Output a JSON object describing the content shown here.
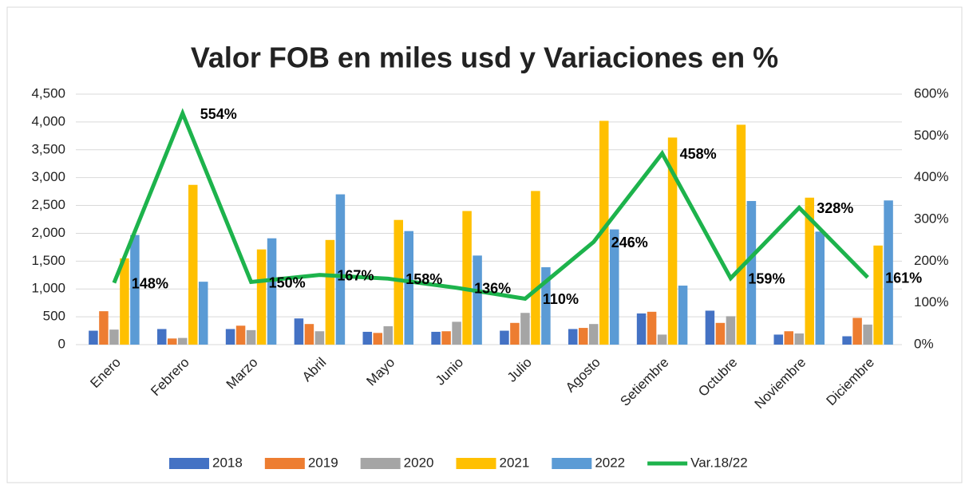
{
  "chart_data": {
    "type": "bar",
    "title": "Valor FOB en miles usd y Variaciones en %",
    "categories": [
      "Enero",
      "Febrero",
      "Marzo",
      "Abril",
      "Mayo",
      "Junio",
      "Julio",
      "Agosto",
      "Setiembre",
      "Octubre",
      "Noviembre",
      "Diciembre"
    ],
    "series": [
      {
        "name": "2018",
        "color": "#4472c4",
        "values": [
          250,
          280,
          280,
          470,
          230,
          230,
          250,
          280,
          560,
          610,
          180,
          150
        ]
      },
      {
        "name": "2019",
        "color": "#ed7d31",
        "values": [
          600,
          110,
          340,
          370,
          210,
          240,
          390,
          300,
          590,
          390,
          240,
          480
        ]
      },
      {
        "name": "2020",
        "color": "#a5a5a5",
        "values": [
          270,
          120,
          260,
          240,
          330,
          410,
          570,
          370,
          180,
          510,
          200,
          360
        ]
      },
      {
        "name": "2021",
        "color": "#ffc000",
        "values": [
          1550,
          2870,
          1710,
          1880,
          2240,
          2400,
          2760,
          4020,
          3720,
          3950,
          2640,
          1780
        ]
      },
      {
        "name": "2022",
        "color": "#5b9bd5",
        "values": [
          1970,
          1130,
          1910,
          2700,
          2040,
          1600,
          1390,
          2070,
          1060,
          2580,
          2030,
          2590
        ]
      },
      {
        "name": "Var.18/22",
        "color": "#1db34c",
        "type": "line",
        "axis": "y2",
        "values": [
          148,
          554,
          150,
          167,
          158,
          136,
          110,
          246,
          458,
          159,
          328,
          161
        ],
        "value_labels": [
          "148%",
          "554%",
          "150%",
          "167%",
          "158%",
          "136%",
          "110%",
          "246%",
          "458%",
          "159%",
          "328%",
          "161%"
        ]
      }
    ],
    "ylim": [
      0,
      4500
    ],
    "yticks": [
      0,
      {
        "value": 500,
        "label": "500"
      },
      {
        "value": 1000,
        "label": "1,000"
      },
      {
        "value": 1500,
        "label": "1,500"
      },
      {
        "value": 2000,
        "label": "2,000"
      },
      {
        "value": 2500,
        "label": "2,500"
      },
      {
        "value": 3000,
        "label": "3,000"
      },
      {
        "value": 3500,
        "label": "3,500"
      },
      {
        "value": 4000,
        "label": "4,000"
      },
      {
        "value": 4500,
        "label": "4,500"
      }
    ],
    "y2lim": [
      0,
      600
    ],
    "y2ticks": [
      {
        "value": 0,
        "label": "0%"
      },
      {
        "value": 100,
        "label": "100%"
      },
      {
        "value": 200,
        "label": "200%"
      },
      {
        "value": 300,
        "label": "300%"
      },
      {
        "value": 400,
        "label": "400%"
      },
      {
        "value": 500,
        "label": "500%"
      },
      {
        "value": 600,
        "label": "600%"
      }
    ],
    "grid": true,
    "legend": "bottom"
  }
}
